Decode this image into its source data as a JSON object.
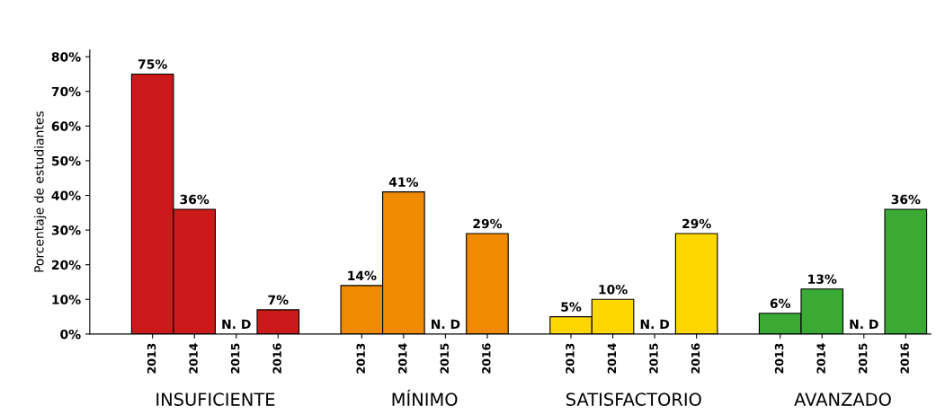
{
  "chart_data": {
    "type": "bar",
    "ylabel": "Porcentaje de estudiantes",
    "categories": [
      "2013",
      "2014",
      "2015",
      "2016",
      null,
      "2013",
      "2014",
      "2015",
      "2016",
      null,
      "2013",
      "2014",
      "2015",
      "2016",
      null,
      "2013",
      "2014",
      "2015",
      "2016"
    ],
    "series": [
      {
        "color": "#cc1a1a",
        "values": [
          75,
          36,
          null,
          7,
          null,
          null,
          null,
          null,
          null,
          null,
          null,
          null,
          null,
          null,
          null,
          null,
          null,
          null,
          null
        ],
        "value_labels": [
          "75%",
          "36%",
          "N. D",
          "7%",
          null,
          null,
          null,
          null,
          null,
          null,
          null,
          null,
          null,
          null,
          null,
          null,
          null,
          null,
          null
        ]
      },
      {
        "color": "#f08a00",
        "values": [
          null,
          null,
          null,
          null,
          null,
          14,
          41,
          null,
          29,
          null,
          null,
          null,
          null,
          null,
          null,
          null,
          null,
          null,
          null
        ],
        "value_labels": [
          null,
          null,
          null,
          null,
          null,
          "14%",
          "41%",
          "N. D",
          "29%",
          null,
          null,
          null,
          null,
          null,
          null,
          null,
          null,
          null,
          null
        ]
      },
      {
        "color": "#ffd700",
        "values": [
          null,
          null,
          null,
          null,
          null,
          null,
          null,
          null,
          null,
          null,
          5,
          10,
          null,
          29,
          null,
          null,
          null,
          null,
          null
        ],
        "value_labels": [
          null,
          null,
          null,
          null,
          null,
          null,
          null,
          null,
          null,
          null,
          "5%",
          "10%",
          "N. D",
          "29%",
          null,
          null,
          null,
          null,
          null
        ]
      },
      {
        "color": "#3aaa35",
        "values": [
          null,
          null,
          null,
          null,
          null,
          null,
          null,
          null,
          null,
          null,
          null,
          null,
          null,
          null,
          null,
          6,
          13,
          null,
          36
        ],
        "value_labels": [
          null,
          null,
          null,
          null,
          null,
          null,
          null,
          null,
          null,
          null,
          null,
          null,
          null,
          null,
          null,
          "6%",
          "13%",
          "N. D",
          "36%"
        ]
      }
    ],
    "ylim": [
      0,
      82
    ],
    "yticks": [
      {
        "value": 0,
        "label": "0%"
      },
      {
        "value": 10,
        "label": "10%"
      },
      {
        "value": 20,
        "label": "20%"
      },
      {
        "value": 30,
        "label": "30%"
      },
      {
        "value": 40,
        "label": "40%"
      },
      {
        "value": 50,
        "label": "50%"
      },
      {
        "value": 60,
        "label": "60%"
      },
      {
        "value": 70,
        "label": "70%"
      },
      {
        "value": 80,
        "label": "80%"
      }
    ],
    "annotations": [
      "INSUFICIENTE",
      "MÍNIMO",
      "SATISFACTORIO",
      "AVANZADO"
    ],
    "grid": false,
    "legend": false
  }
}
